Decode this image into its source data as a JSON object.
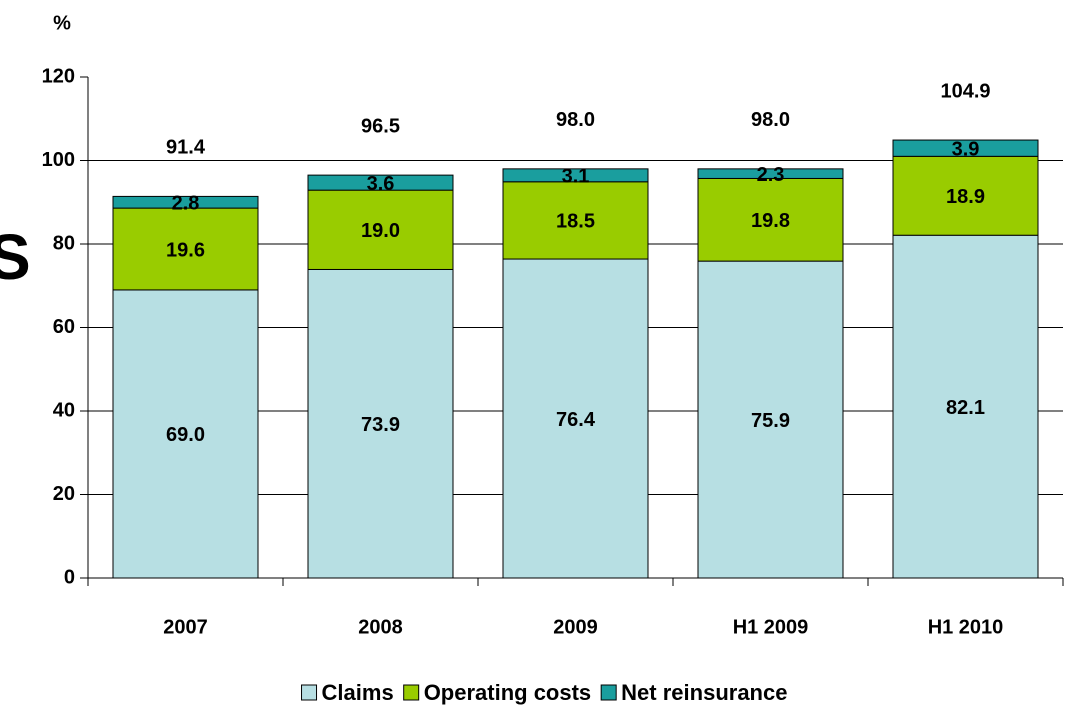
{
  "chart_data": {
    "type": "stacked_bar",
    "y_axis_label": "%",
    "annotation": "S",
    "categories": [
      "2007",
      "2008",
      "2009",
      "H1 2009",
      "H1 2010"
    ],
    "series": [
      {
        "name": "Claims",
        "color": "#b7dfe3",
        "values": [
          69.0,
          73.9,
          76.4,
          75.9,
          82.1
        ],
        "value_labels": [
          "69.0",
          "73.9",
          "76.4",
          "75.9",
          "82.1"
        ]
      },
      {
        "name": "Operating costs",
        "color": "#99cc00",
        "values": [
          19.6,
          19.0,
          18.5,
          19.8,
          18.9
        ],
        "value_labels": [
          "19.6",
          "19.0",
          "18.5",
          "19.8",
          "18.9"
        ]
      },
      {
        "name": "Net reinsurance",
        "color": "#1a9e9e",
        "values": [
          2.8,
          3.6,
          3.1,
          2.3,
          3.9
        ],
        "value_labels": [
          "2.8",
          "3.6",
          "3.1",
          "2.3",
          "3.9"
        ]
      }
    ],
    "totals": {
      "values": [
        91.4,
        96.5,
        98.0,
        98.0,
        104.9
      ],
      "value_labels": [
        "91.4",
        "96.5",
        "98.0",
        "98.0",
        "104.9"
      ]
    },
    "ylim": [
      0,
      120
    ],
    "yticks": [
      0,
      20,
      40,
      60,
      80,
      100,
      120
    ],
    "grid": true,
    "legend": "bottom"
  }
}
